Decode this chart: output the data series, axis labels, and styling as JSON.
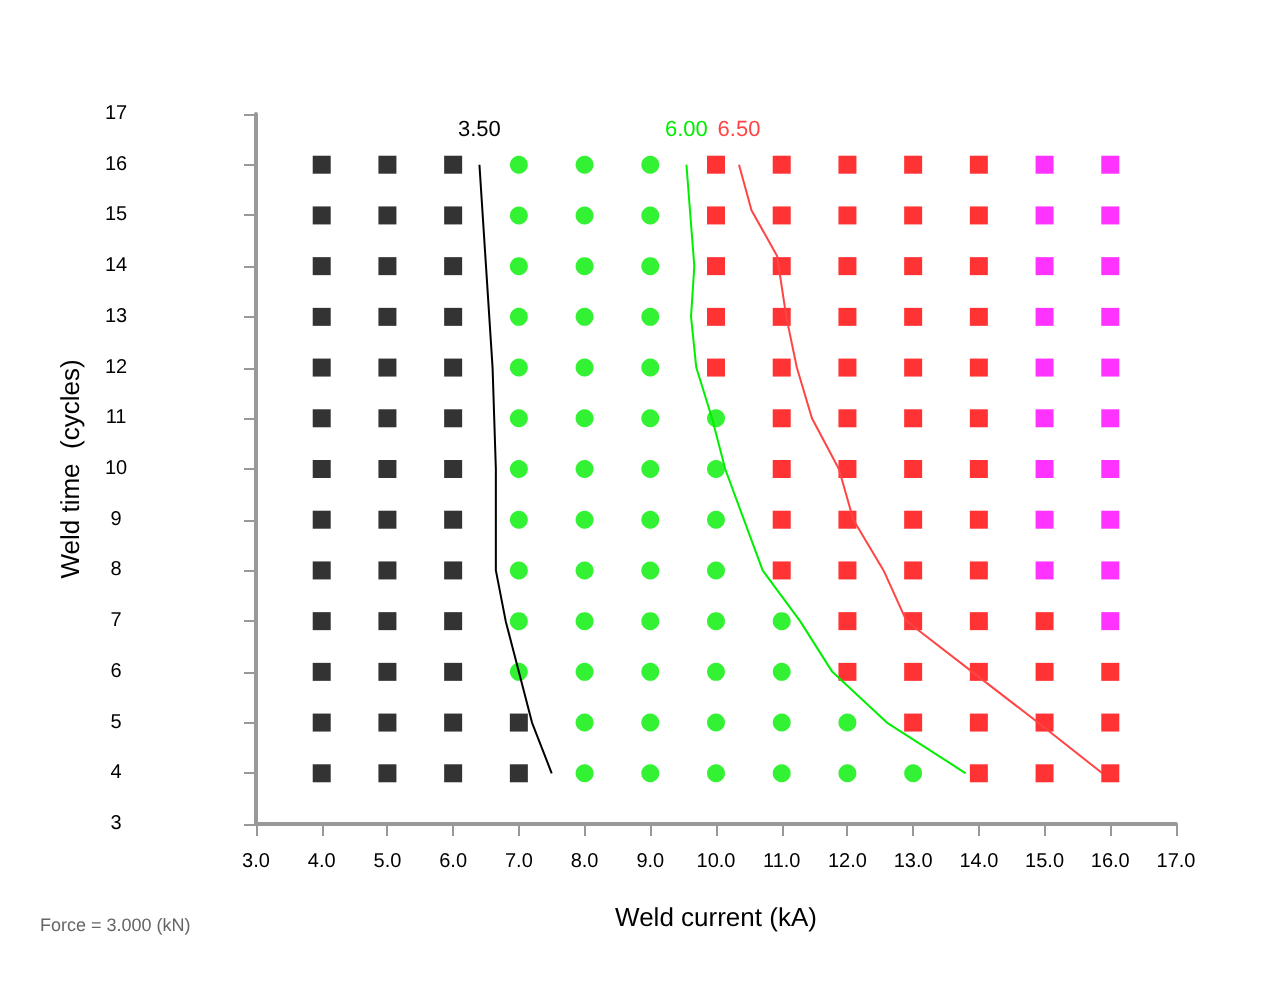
{
  "chart_data": {
    "type": "scatter",
    "xlabel": "Weld current (kA)",
    "ylabel": "Weld time  (cycles)",
    "annotations": [
      "Force = 3.000 (kN)"
    ],
    "xlim": [
      3,
      17
    ],
    "xticks": [
      {
        "value": 3,
        "label": "3.0"
      },
      {
        "value": 4,
        "label": "4.0"
      },
      {
        "value": 5,
        "label": "5.0"
      },
      {
        "value": 6,
        "label": "6.0"
      },
      {
        "value": 7,
        "label": "7.0"
      },
      {
        "value": 8,
        "label": "8.0"
      },
      {
        "value": 9,
        "label": "9.0"
      },
      {
        "value": 10,
        "label": "10.0"
      },
      {
        "value": 11,
        "label": "11.0"
      },
      {
        "value": 12,
        "label": "12.0"
      },
      {
        "value": 13,
        "label": "13.0"
      },
      {
        "value": 14,
        "label": "14.0"
      },
      {
        "value": 15,
        "label": "15.0"
      },
      {
        "value": 16,
        "label": "16.0"
      },
      {
        "value": 17,
        "label": "17.0"
      }
    ],
    "ylim": [
      3,
      17
    ],
    "yticks": [
      3,
      4,
      5,
      6,
      7,
      8,
      9,
      10,
      11,
      12,
      13,
      14,
      15,
      16,
      17
    ],
    "grid": false,
    "legend": false,
    "series": [
      {
        "marker": "square",
        "color": "#000000",
        "x": [
          4,
          5,
          6,
          4,
          5,
          6,
          4,
          5,
          6,
          4,
          5,
          6,
          4,
          5,
          6,
          4,
          5,
          6,
          4,
          5,
          6,
          4,
          5,
          6,
          4,
          5,
          6,
          4,
          5,
          6,
          4,
          5,
          6,
          4,
          5,
          6,
          7,
          4,
          5,
          6,
          7
        ],
        "values": [
          16,
          16,
          16,
          15,
          15,
          15,
          14,
          14,
          14,
          13,
          13,
          13,
          12,
          12,
          12,
          11,
          11,
          11,
          10,
          10,
          10,
          9,
          9,
          9,
          8,
          8,
          8,
          7,
          7,
          7,
          6,
          6,
          6,
          5,
          5,
          5,
          5,
          4,
          4,
          4,
          4
        ]
      },
      {
        "marker": "circle",
        "color": "#00ee00",
        "x": [
          7,
          8,
          9,
          7,
          8,
          9,
          7,
          8,
          9,
          7,
          8,
          9,
          7,
          8,
          9,
          7,
          8,
          9,
          10,
          7,
          8,
          9,
          10,
          7,
          8,
          9,
          10,
          7,
          8,
          9,
          10,
          7,
          8,
          9,
          10,
          11,
          7,
          8,
          9,
          10,
          11,
          8,
          9,
          10,
          11,
          12,
          8,
          9,
          10,
          11,
          12,
          13
        ],
        "values": [
          16,
          16,
          16,
          15,
          15,
          15,
          14,
          14,
          14,
          13,
          13,
          13,
          12,
          12,
          12,
          11,
          11,
          11,
          11,
          10,
          10,
          10,
          10,
          9,
          9,
          9,
          9,
          8,
          8,
          8,
          8,
          7,
          7,
          7,
          7,
          7,
          6,
          6,
          6,
          6,
          6,
          5,
          5,
          5,
          5,
          5,
          4,
          4,
          4,
          4,
          4,
          4
        ]
      },
      {
        "marker": "square",
        "color": "#ff0000",
        "x": [
          10,
          11,
          12,
          13,
          14,
          10,
          11,
          12,
          13,
          14,
          10,
          11,
          12,
          13,
          14,
          10,
          11,
          12,
          13,
          14,
          10,
          11,
          12,
          13,
          14,
          11,
          12,
          13,
          14,
          11,
          12,
          13,
          14,
          11,
          12,
          13,
          14,
          11,
          12,
          13,
          14,
          12,
          13,
          14,
          15,
          12,
          13,
          14,
          15,
          16,
          13,
          14,
          15,
          16,
          14,
          15,
          16
        ],
        "values": [
          16,
          16,
          16,
          16,
          16,
          15,
          15,
          15,
          15,
          15,
          14,
          14,
          14,
          14,
          14,
          13,
          13,
          13,
          13,
          13,
          12,
          12,
          12,
          12,
          12,
          11,
          11,
          11,
          11,
          10,
          10,
          10,
          10,
          9,
          9,
          9,
          9,
          8,
          8,
          8,
          8,
          7,
          7,
          7,
          7,
          6,
          6,
          6,
          6,
          6,
          5,
          5,
          5,
          5,
          4,
          4,
          4
        ]
      },
      {
        "marker": "square",
        "color": "#ff00ff",
        "x": [
          15,
          16,
          15,
          16,
          15,
          16,
          15,
          16,
          15,
          16,
          15,
          16,
          15,
          16,
          15,
          16,
          15,
          16,
          16
        ],
        "values": [
          16,
          16,
          15,
          15,
          14,
          14,
          13,
          13,
          12,
          12,
          11,
          11,
          10,
          10,
          9,
          9,
          8,
          8,
          7
        ]
      },
      {
        "type": "line",
        "name": "3.50",
        "marker": "none",
        "color": "#000000",
        "x": [
          6.4,
          6.5,
          6.6,
          6.65,
          6.65,
          6.8,
          7.0,
          7.2,
          7.5
        ],
        "values": [
          16,
          14,
          12,
          10,
          8,
          7,
          6,
          5,
          4
        ]
      },
      {
        "type": "line",
        "name": "6.00",
        "marker": "none",
        "color": "#00ee00",
        "x": [
          9.55,
          9.67,
          9.62,
          9.7,
          9.94,
          10.14,
          10.71,
          11.28,
          11.77,
          12.6,
          13.8
        ],
        "values": [
          16,
          14,
          13,
          12,
          11,
          10,
          8,
          7,
          6,
          5,
          4
        ]
      },
      {
        "type": "line",
        "name": "6.50",
        "marker": "none",
        "color": "#ff4444",
        "x": [
          10.35,
          10.54,
          10.93,
          11.07,
          11.23,
          11.46,
          11.87,
          12.09,
          12.55,
          12.9,
          13.1,
          13.9,
          14.9,
          15.88
        ],
        "values": [
          16,
          15.1,
          14.2,
          13,
          12,
          11,
          10,
          9,
          8,
          7,
          6.8,
          6,
          5,
          4
        ]
      }
    ]
  }
}
